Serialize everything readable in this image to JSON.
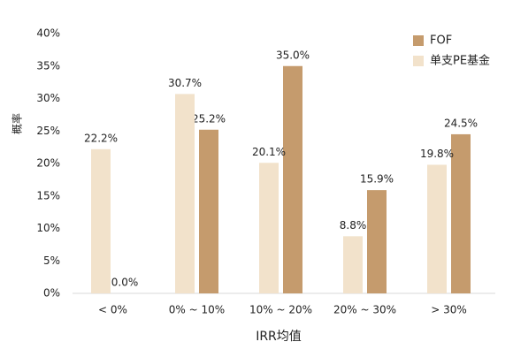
{
  "chart_data": {
    "type": "bar",
    "x_label": "IRR均值",
    "y_label": "概率",
    "categories": [
      "< 0%",
      "0% ~ 10%",
      "10% ~ 20%",
      "20% ~ 30%",
      "> 30%"
    ],
    "series": [
      {
        "name": "FOF",
        "color": "#c59b6d",
        "values": [
          0.0,
          25.2,
          35.0,
          15.9,
          24.5
        ],
        "value_labels": [
          "0.0%",
          "25.2%",
          "35.0%",
          "15.9%",
          "24.5%"
        ]
      },
      {
        "name": "单支PE基金",
        "color": "#f2e2cb",
        "values": [
          22.2,
          30.7,
          20.1,
          8.8,
          19.8
        ],
        "value_labels": [
          "22.2%",
          "30.7%",
          "20.1%",
          "8.8%",
          "19.8%"
        ]
      }
    ],
    "ylim": [
      0,
      40
    ],
    "yticks": [
      {
        "value": 0,
        "label": "0%"
      },
      {
        "value": 5,
        "label": "5%"
      },
      {
        "value": 10,
        "label": "10%"
      },
      {
        "value": 15,
        "label": "15%"
      },
      {
        "value": 20,
        "label": "20%"
      },
      {
        "value": 25,
        "label": "25%"
      },
      {
        "value": 30,
        "label": "30%"
      },
      {
        "value": 35,
        "label": "35%"
      },
      {
        "value": 40,
        "label": "40%"
      }
    ],
    "grid": false,
    "legend": "top-right"
  }
}
